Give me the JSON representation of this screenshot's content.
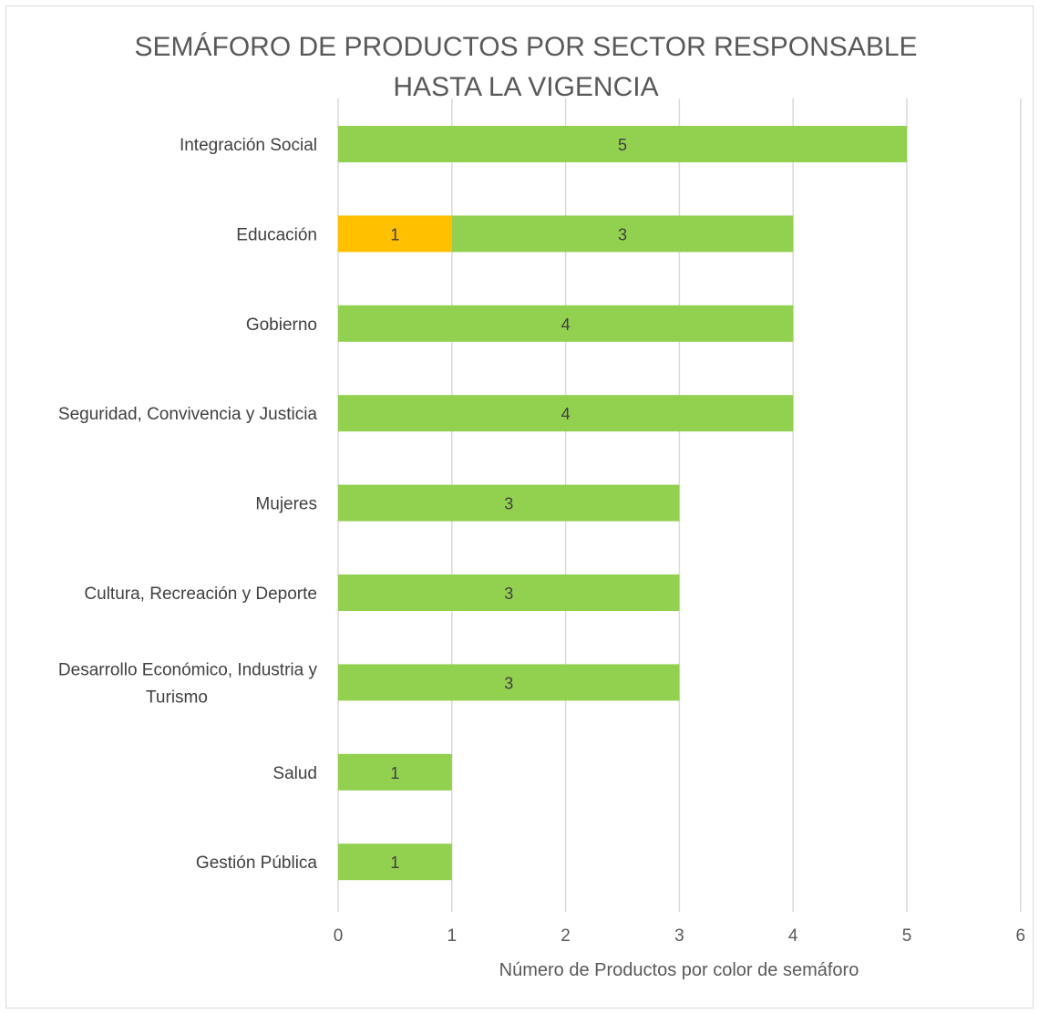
{
  "chart_data": {
    "type": "bar",
    "orientation": "horizontal",
    "stacked": true,
    "title": "SEMÁFORO DE PRODUCTOS POR SECTOR RESPONSABLE HASTA LA VIGENCIA",
    "title_lines": [
      "SEMÁFORO DE PRODUCTOS POR SECTOR RESPONSABLE",
      "HASTA LA VIGENCIA"
    ],
    "xlabel": "Número de Productos por color de semáforo",
    "ylabel": "",
    "xlim": [
      0,
      6
    ],
    "xticks": [
      "0",
      "1",
      "2",
      "3",
      "4",
      "5",
      "6"
    ],
    "grid": "vertical",
    "legend": "none",
    "categories": [
      "Integración Social",
      "Educación",
      "Gobierno",
      "Seguridad, Convivencia y Justicia",
      "Mujeres",
      "Cultura, Recreación y Deporte",
      "Desarrollo Económico, Industria y Turismo",
      "Salud",
      "Gestión Pública"
    ],
    "category_label_lines": [
      [
        "Integración Social"
      ],
      [
        "Educación"
      ],
      [
        "Gobierno"
      ],
      [
        "Seguridad, Convivencia y Justicia"
      ],
      [
        "Mujeres"
      ],
      [
        "Cultura, Recreación y Deporte"
      ],
      [
        "Desarrollo Económico, Industria y",
        "Turismo"
      ],
      [
        "Salud"
      ],
      [
        "Gestión Pública"
      ]
    ],
    "series": [
      {
        "color": "#FFC000",
        "values": [
          0,
          1,
          0,
          0,
          0,
          0,
          0,
          0,
          0
        ]
      },
      {
        "color": "#92D050",
        "values": [
          5,
          3,
          4,
          4,
          3,
          3,
          3,
          1,
          1
        ]
      }
    ]
  }
}
